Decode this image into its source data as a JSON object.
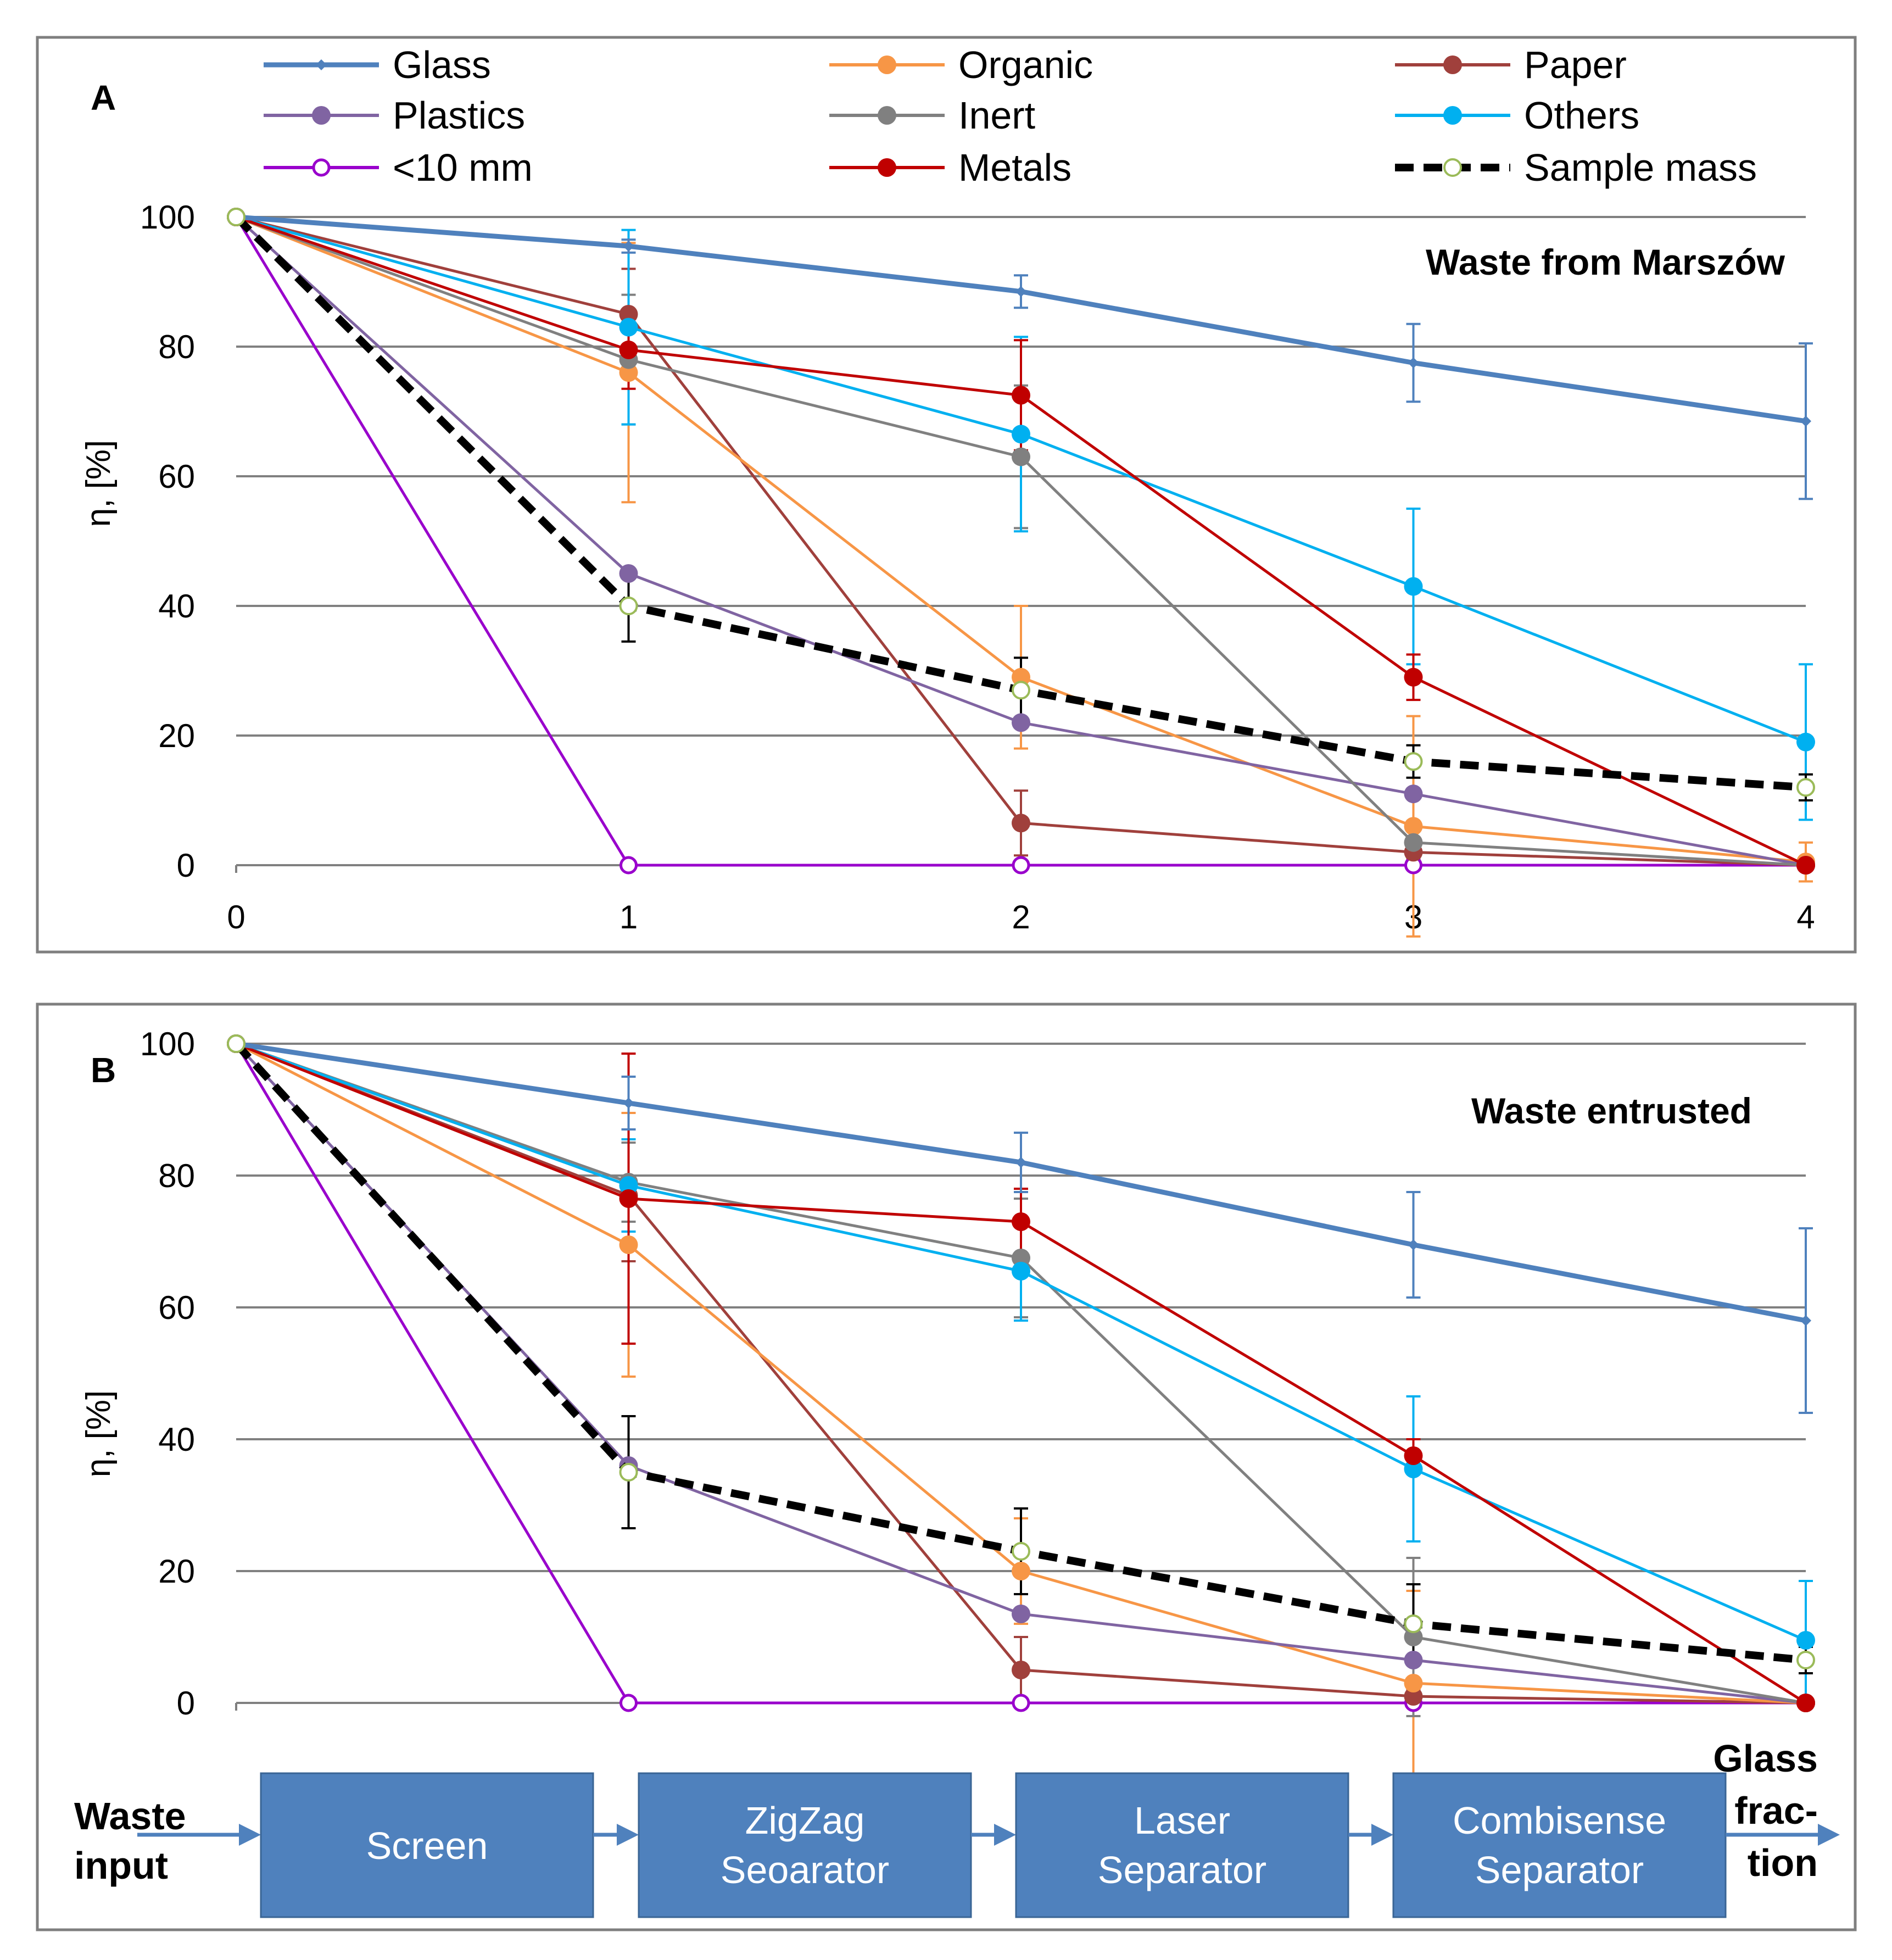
{
  "figure": {
    "legend": [
      {
        "name": "Glass",
        "color": "#4f81bd",
        "marker": "diamond"
      },
      {
        "name": "Organic",
        "color": "#f79646",
        "marker": "circle"
      },
      {
        "name": "Paper",
        "color": "#a0403c",
        "marker": "circle"
      },
      {
        "name": "Plastics",
        "color": "#8064a2",
        "marker": "circle"
      },
      {
        "name": "Inert",
        "color": "#808080",
        "marker": "circle"
      },
      {
        "name": "Others",
        "color": "#00b0f0",
        "marker": "circle"
      },
      {
        "name": "<10 mm",
        "color": "#9900cc",
        "marker": "open-circle"
      },
      {
        "name": "Metals",
        "color": "#c00000",
        "marker": "circle"
      },
      {
        "name": "Sample mass",
        "color": "#000000",
        "marker": "open-circle-dashed"
      }
    ],
    "flow": {
      "input_line1": "Waste",
      "input_line2": "input",
      "stages": [
        {
          "line1": "Screen",
          "line2": ""
        },
        {
          "line1": "ZigZag",
          "line2": "Seoarator"
        },
        {
          "line1": "Laser",
          "line2": "Separator"
        },
        {
          "line1": "Combisense",
          "line2": "Separator"
        }
      ],
      "output_lines": [
        "Glass",
        "frac-",
        "tion"
      ],
      "box_color": "#4f81bd"
    }
  },
  "chart_data": [
    {
      "type": "line",
      "panel": "A",
      "title": "Waste from Marszów",
      "ylabel": "η, [%]",
      "xlabel": "",
      "x": [
        0,
        1,
        2,
        3,
        4
      ],
      "x_tick_labels": [
        "0",
        "1",
        "2",
        "3",
        "4"
      ],
      "ylim": [
        0,
        100
      ],
      "y_ticks": [
        0,
        20,
        40,
        60,
        80,
        100
      ],
      "grid": true,
      "series": [
        {
          "name": "Glass",
          "values": [
            100,
            95.5,
            88.5,
            77.5,
            68.5
          ],
          "errors": [
            0,
            1,
            2.5,
            6,
            12
          ]
        },
        {
          "name": "Organic",
          "values": [
            100,
            76,
            29,
            6,
            0.5
          ],
          "errors": [
            0,
            20,
            11,
            17,
            3
          ]
        },
        {
          "name": "Paper",
          "values": [
            100,
            85,
            6.5,
            2,
            0
          ],
          "errors": [
            0,
            7,
            5,
            1,
            0.5
          ]
        },
        {
          "name": "Plastics",
          "values": [
            100,
            45,
            22,
            11,
            0
          ],
          "errors": [
            0,
            0,
            0,
            0,
            0
          ]
        },
        {
          "name": "Inert",
          "values": [
            100,
            78,
            63,
            3.5,
            0
          ],
          "errors": [
            0,
            10,
            11,
            2,
            0
          ]
        },
        {
          "name": "Others",
          "values": [
            100,
            83,
            66.5,
            43,
            19
          ],
          "errors": [
            0,
            15,
            15,
            12,
            12
          ]
        },
        {
          "name": "<10 mm",
          "values": [
            100,
            0,
            0,
            0,
            0
          ],
          "errors": [
            0,
            0,
            0,
            0,
            0
          ]
        },
        {
          "name": "Metals",
          "values": [
            100,
            79.5,
            72.5,
            29,
            0
          ],
          "errors": [
            0,
            6,
            8.5,
            3.5,
            0
          ]
        },
        {
          "name": "Sample mass",
          "values": [
            100,
            40,
            27,
            16,
            12
          ],
          "errors": [
            0,
            5.5,
            5,
            2.5,
            2
          ]
        }
      ]
    },
    {
      "type": "line",
      "panel": "B",
      "title": "Waste entrusted",
      "ylabel": "η, [%]",
      "xlabel": "",
      "x": [
        0,
        1,
        2,
        3,
        4
      ],
      "ylim": [
        0,
        100
      ],
      "y_ticks": [
        0,
        20,
        40,
        60,
        80,
        100
      ],
      "grid": true,
      "series": [
        {
          "name": "Glass",
          "values": [
            100,
            91,
            82,
            69.5,
            58
          ],
          "errors": [
            0,
            4,
            4.5,
            8,
            14
          ]
        },
        {
          "name": "Organic",
          "values": [
            100,
            69.5,
            20,
            3,
            0
          ],
          "errors": [
            0,
            20,
            8,
            14,
            0.5
          ]
        },
        {
          "name": "Paper",
          "values": [
            100,
            77,
            5,
            1,
            0
          ],
          "errors": [
            0,
            10,
            5,
            1,
            0.5
          ]
        },
        {
          "name": "Plastics",
          "values": [
            100,
            36,
            13.5,
            6.5,
            0
          ],
          "errors": [
            0,
            0,
            0,
            0,
            0
          ]
        },
        {
          "name": "Inert",
          "values": [
            100,
            79,
            67.5,
            10,
            0
          ],
          "errors": [
            0,
            6,
            9,
            12,
            0
          ]
        },
        {
          "name": "Others",
          "values": [
            100,
            78.5,
            65.5,
            35.5,
            9.5
          ],
          "errors": [
            0,
            7,
            7.5,
            11,
            9
          ]
        },
        {
          "name": "<10 mm",
          "values": [
            100,
            0,
            0,
            0,
            0
          ],
          "errors": [
            0,
            0,
            0,
            0,
            0
          ]
        },
        {
          "name": "Metals",
          "values": [
            100,
            76.5,
            73,
            37.5,
            0
          ],
          "errors": [
            0,
            22,
            5,
            2.5,
            0
          ]
        },
        {
          "name": "Sample mass",
          "values": [
            100,
            35,
            23,
            12,
            6.5
          ],
          "errors": [
            0,
            8.5,
            6.5,
            6,
            2
          ]
        }
      ]
    }
  ]
}
